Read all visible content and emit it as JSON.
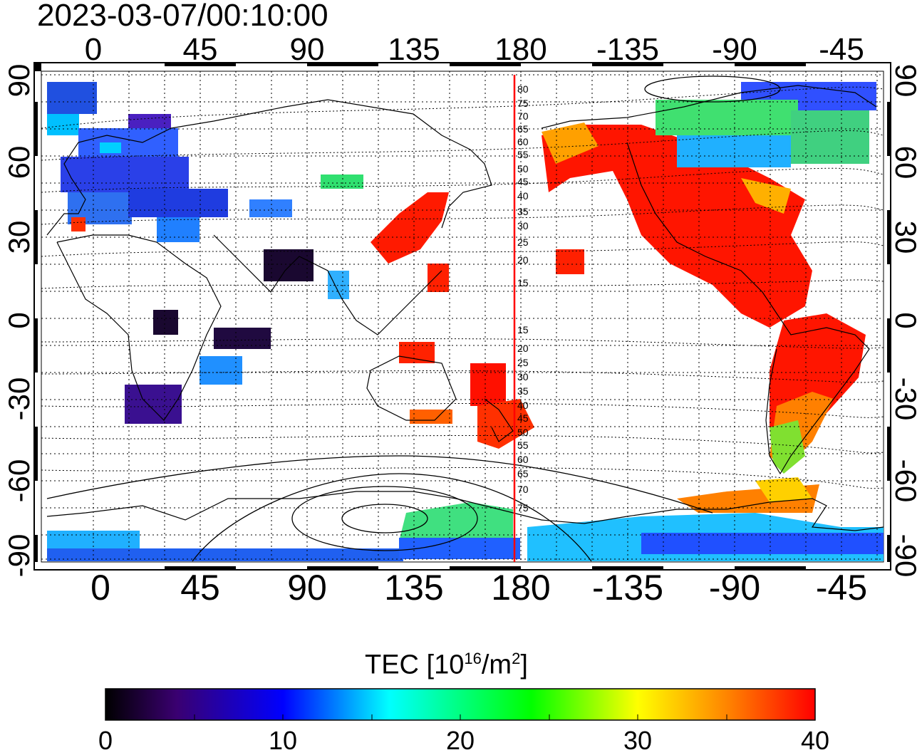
{
  "timestamp": "2023-03-07/00:10:00",
  "map": {
    "lon_ticks_top": [
      "0",
      "45",
      "90",
      "135",
      "180",
      "-135",
      "-90",
      "-45"
    ],
    "lon_ticks_bottom": [
      "0",
      "45",
      "90",
      "135",
      "180",
      "-135",
      "-90",
      "-45"
    ],
    "lat_ticks_left": [
      "90",
      "60",
      "30",
      "0",
      "-30",
      "-60",
      "-90"
    ],
    "lat_ticks_right": [
      "90",
      "60",
      "30",
      "0",
      "-30",
      "-60",
      "-90"
    ],
    "contour_labels_north": [
      "80",
      "75",
      "70",
      "65",
      "60",
      "55",
      "50",
      "45",
      "40",
      "35",
      "30",
      "25",
      "20",
      "15"
    ],
    "contour_labels_south": [
      "15",
      "20",
      "25",
      "30",
      "35",
      "40",
      "45",
      "50",
      "55",
      "60",
      "65",
      "70",
      "75"
    ],
    "dateline_color": "#ff0000",
    "grid": "dotted"
  },
  "colorbar": {
    "title": "TEC  [10",
    "title_exp": "16",
    "title_unit": "/m",
    "title_unit_exp": "2",
    "title_close": "]",
    "min": 0,
    "max": 40,
    "tick_labels": [
      "0",
      "10",
      "20",
      "30",
      "40"
    ],
    "colors": [
      "#000000",
      "#3a0070",
      "#0000ff",
      "#00ffff",
      "#00ff00",
      "#ffff00",
      "#ff8000",
      "#ff0000"
    ]
  }
}
